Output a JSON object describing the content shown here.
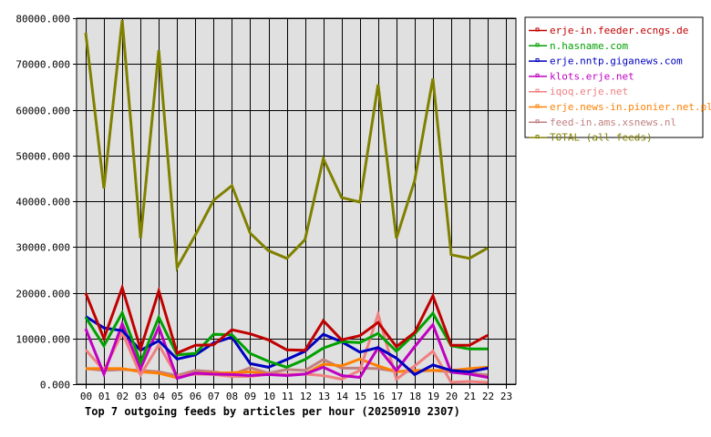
{
  "chart_data": {
    "type": "line",
    "title": "Top 7 outgoing feeds by articles per hour (20250910 2307)",
    "xlabel": "",
    "ylabel": "",
    "ylim": [
      0,
      80000
    ],
    "grid": true,
    "legend_position": "right-top",
    "y_ticks": [
      "0.000",
      "10000.000",
      "20000.000",
      "30000.000",
      "40000.000",
      "50000.000",
      "60000.000",
      "70000.000",
      "80000.000"
    ],
    "categories": [
      "00",
      "01",
      "02",
      "03",
      "04",
      "05",
      "06",
      "07",
      "08",
      "09",
      "10",
      "11",
      "12",
      "13",
      "14",
      "15",
      "16",
      "17",
      "18",
      "19",
      "20",
      "21",
      "22",
      "23"
    ],
    "series": [
      {
        "name": "erje-in.feeder.ecngs.de",
        "color": "#c00000",
        "values": [
          19900,
          10000,
          21100,
          7700,
          20400,
          6800,
          8500,
          8600,
          11900,
          11000,
          9700,
          7500,
          7400,
          13900,
          9700,
          10600,
          13500,
          8200,
          11300,
          19300,
          8500,
          8500,
          10700
        ]
      },
      {
        "name": "n.hasname.com",
        "color": "#00a000",
        "values": [
          14600,
          8400,
          15600,
          4800,
          14600,
          6400,
          6700,
          10900,
          10800,
          6700,
          5000,
          3700,
          5400,
          7900,
          9300,
          9100,
          11100,
          7200,
          11000,
          15500,
          8400,
          7700,
          7700
        ]
      },
      {
        "name": "erje.nntp.giganews.com",
        "color": "#0000c0",
        "values": [
          14800,
          12300,
          11700,
          7400,
          9500,
          5500,
          6400,
          9000,
          10300,
          4500,
          3700,
          5400,
          7200,
          10900,
          9300,
          7000,
          8000,
          5700,
          2100,
          4200,
          3000,
          2700,
          3500
        ]
      },
      {
        "name": "klots.erje.net",
        "color": "#c000c0",
        "values": [
          12100,
          2200,
          13200,
          3400,
          12500,
          1300,
          2400,
          2200,
          2100,
          1900,
          2100,
          1900,
          2200,
          3700,
          1900,
          1500,
          8000,
          3000,
          8200,
          13000,
          2600,
          2200,
          1500
        ]
      },
      {
        "name": "iqoq.erje.net",
        "color": "#f08080",
        "values": [
          7500,
          3000,
          11300,
          2000,
          8600,
          1700,
          2200,
          2100,
          1700,
          1700,
          2200,
          2100,
          2200,
          1900,
          1100,
          3000,
          15300,
          1100,
          4000,
          7200,
          400,
          600,
          400
        ]
      },
      {
        "name": "erje.news-in.pionier.net.pl",
        "color": "#ff8000",
        "values": [
          3400,
          3400,
          3400,
          2700,
          2400,
          1400,
          2400,
          2400,
          2500,
          2700,
          2200,
          2100,
          2200,
          4400,
          4000,
          5500,
          4000,
          2700,
          3000,
          3000,
          3000,
          3400,
          3700
        ]
      },
      {
        "name": "feed-in.ams.xsnews.nl",
        "color": "#c08080",
        "values": [
          3400,
          3000,
          3200,
          3000,
          2700,
          1900,
          3000,
          2700,
          2100,
          3600,
          2400,
          3200,
          3000,
          5400,
          3500,
          3500,
          3400,
          2800,
          2800,
          3000,
          2700,
          2400,
          2000
        ]
      },
      {
        "name": "TOTAL (all feeds)",
        "color": "#808000",
        "values": [
          76800,
          42800,
          79600,
          31900,
          73000,
          25500,
          32600,
          40200,
          43400,
          33000,
          29200,
          27500,
          31600,
          49300,
          40800,
          39800,
          65500,
          31900,
          44500,
          66800,
          28300,
          27500,
          29800
        ]
      }
    ]
  },
  "legend": {
    "items": [
      {
        "label": "erje-in.feeder.ecngs.de",
        "color": "#c00000"
      },
      {
        "label": "n.hasname.com",
        "color": "#00a000"
      },
      {
        "label": "erje.nntp.giganews.com",
        "color": "#0000c0"
      },
      {
        "label": "klots.erje.net",
        "color": "#c000c0"
      },
      {
        "label": "iqoq.erje.net",
        "color": "#f08080"
      },
      {
        "label": "erje.news-in.pionier.net.pl",
        "color": "#ff8000"
      },
      {
        "label": "feed-in.ams.xsnews.nl",
        "color": "#c08080"
      },
      {
        "label": "TOTAL (all feeds)",
        "color": "#808000"
      }
    ]
  },
  "colors": {
    "plot_background": "#e0e0e0",
    "grid": "#000000",
    "page_background": "#ffffff"
  }
}
